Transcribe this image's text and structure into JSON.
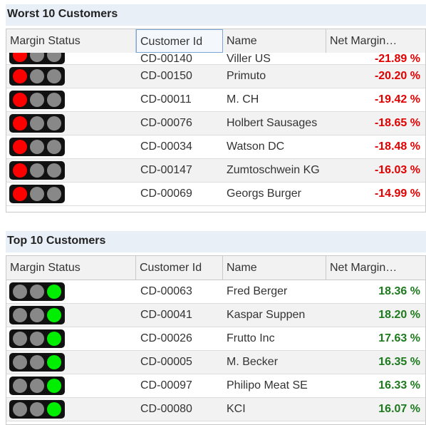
{
  "worst": {
    "title": "Worst 10 Customers",
    "headers": [
      "Margin Status",
      "Customer Id",
      "Name",
      "Net Margin…"
    ],
    "rows": [
      {
        "status": "red",
        "id": "CD-00140",
        "name": "Viller US",
        "margin": "-21.89 %"
      },
      {
        "status": "red",
        "id": "CD-00150",
        "name": "Primuto",
        "margin": "-20.20 %"
      },
      {
        "status": "red",
        "id": "CD-00011",
        "name": "M. CH",
        "margin": "-19.42 %"
      },
      {
        "status": "red",
        "id": "CD-00076",
        "name": "Holbert Sausages",
        "margin": "-18.65 %"
      },
      {
        "status": "red",
        "id": "CD-00034",
        "name": "Watson DC",
        "margin": "-18.48 %"
      },
      {
        "status": "red",
        "id": "CD-00147",
        "name": "Zumtoschwein KG",
        "margin": "-16.03 %"
      },
      {
        "status": "red",
        "id": "CD-00069",
        "name": "Georgs Burger",
        "margin": "-14.99 %"
      }
    ]
  },
  "top": {
    "title": "Top 10 Customers",
    "headers": [
      "Margin Status",
      "Customer Id",
      "Name",
      "Net Margin…"
    ],
    "rows": [
      {
        "status": "green",
        "id": "CD-00063",
        "name": "Fred Berger",
        "margin": "18.36 %"
      },
      {
        "status": "green",
        "id": "CD-00041",
        "name": "Kaspar Suppen",
        "margin": "18.20 %"
      },
      {
        "status": "green",
        "id": "CD-00026",
        "name": "Frutto Inc",
        "margin": "17.63 %"
      },
      {
        "status": "green",
        "id": "CD-00005",
        "name": "M. Becker",
        "margin": "16.35 %"
      },
      {
        "status": "green",
        "id": "CD-00097",
        "name": "Philipo Meat SE",
        "margin": "16.33 %"
      },
      {
        "status": "green",
        "id": "CD-00080",
        "name": "KCI",
        "margin": "16.07 %"
      }
    ]
  },
  "colors": {
    "negative": "#e00000",
    "positive": "#1e7a1e",
    "light_red": "#ff0000",
    "light_green": "#00ee00",
    "light_off": "#888888"
  }
}
